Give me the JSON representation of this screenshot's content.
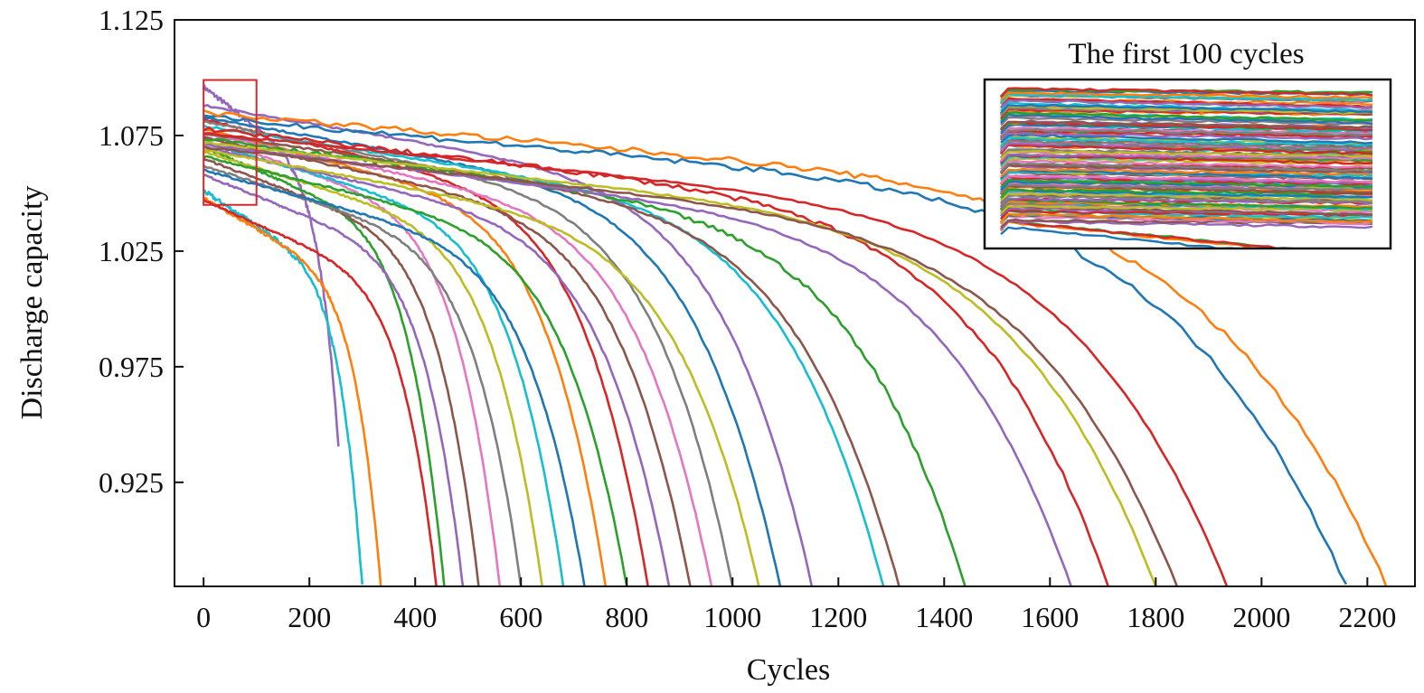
{
  "chart_data": {
    "type": "line",
    "title": "",
    "xlabel": "Cycles",
    "ylabel": "Discharge capacity",
    "xlim": [
      -55,
      2290
    ],
    "ylim": [
      0.88,
      1.125
    ],
    "xticks": [
      0,
      200,
      400,
      600,
      800,
      1000,
      1200,
      1400,
      1600,
      1800,
      2000,
      2200
    ],
    "xtick_labels": [
      "0",
      "200",
      "400",
      "600",
      "800",
      "1000",
      "1200",
      "1400",
      "1600",
      "1800",
      "2000",
      "2200"
    ],
    "yticks": [
      0.925,
      0.975,
      1.025,
      1.075,
      1.125
    ],
    "ytick_labels": [
      "0.925",
      "0.975",
      "1.025",
      "1.075",
      "1.125"
    ],
    "grid": false,
    "legend": "none",
    "highlight_box": {
      "x": [
        0,
        100
      ],
      "y": [
        1.045,
        1.099
      ],
      "color": "#d62728"
    },
    "inset": {
      "title": "The first 100 cycles",
      "x_range": [
        0,
        100
      ],
      "y_range": [
        1.035,
        1.1
      ]
    },
    "colors": [
      "#1f77b4",
      "#ff7f0e",
      "#2ca02c",
      "#d62728",
      "#9467bd",
      "#8c564b",
      "#e377c2",
      "#7f7f7f",
      "#bcbd22",
      "#17becf"
    ],
    "n_cells": 124,
    "series": [
      {
        "start": 1.096,
        "end_cycle": 255,
        "end_cap": 0.94,
        "color": "#9467bd",
        "noise": 0.001
      },
      {
        "start": 1.051,
        "end_cycle": 300,
        "end_cap": 0.88,
        "color": "#17becf",
        "noise": 0.001
      },
      {
        "start": 1.048,
        "end_cycle": 335,
        "end_cap": 0.88,
        "color": "#ff7f0e",
        "noise": 0.0006
      },
      {
        "start": 1.047,
        "end_cycle": 440,
        "end_cap": 0.88,
        "color": "#d62728",
        "noise": 0.0004
      },
      {
        "start": 1.07,
        "end_cycle": 455,
        "end_cap": 0.88,
        "color": "#2ca02c",
        "noise": 0.0004
      },
      {
        "start": 1.058,
        "end_cycle": 490,
        "end_cap": 0.88,
        "color": "#9467bd",
        "noise": 0.0004
      },
      {
        "start": 1.065,
        "end_cycle": 520,
        "end_cap": 0.88,
        "color": "#8c564b",
        "noise": 0.0004
      },
      {
        "start": 1.075,
        "end_cycle": 560,
        "end_cap": 0.88,
        "color": "#e377c2",
        "noise": 0.0004
      },
      {
        "start": 1.062,
        "end_cycle": 600,
        "end_cap": 0.88,
        "color": "#7f7f7f",
        "noise": 0.0004
      },
      {
        "start": 1.068,
        "end_cycle": 640,
        "end_cap": 0.88,
        "color": "#bcbd22",
        "noise": 0.0004
      },
      {
        "start": 1.072,
        "end_cycle": 680,
        "end_cap": 0.88,
        "color": "#17becf",
        "noise": 0.0004
      },
      {
        "start": 1.06,
        "end_cycle": 720,
        "end_cap": 0.88,
        "color": "#1f77b4",
        "noise": 0.0004
      },
      {
        "start": 1.078,
        "end_cycle": 760,
        "end_cap": 0.88,
        "color": "#ff7f0e",
        "noise": 0.0004
      },
      {
        "start": 1.066,
        "end_cycle": 800,
        "end_cap": 0.88,
        "color": "#2ca02c",
        "noise": 0.0004
      },
      {
        "start": 1.082,
        "end_cycle": 840,
        "end_cap": 0.88,
        "color": "#d62728",
        "noise": 0.0004
      },
      {
        "start": 1.07,
        "end_cycle": 880,
        "end_cap": 0.88,
        "color": "#9467bd",
        "noise": 0.0004
      },
      {
        "start": 1.074,
        "end_cycle": 920,
        "end_cap": 0.88,
        "color": "#8c564b",
        "noise": 0.0004
      },
      {
        "start": 1.076,
        "end_cycle": 960,
        "end_cap": 0.88,
        "color": "#e377c2",
        "noise": 0.0004
      },
      {
        "start": 1.081,
        "end_cycle": 1000,
        "end_cap": 0.88,
        "color": "#7f7f7f",
        "noise": 0.0004
      },
      {
        "start": 1.069,
        "end_cycle": 1050,
        "end_cap": 0.88,
        "color": "#bcbd22",
        "noise": 0.0004
      },
      {
        "start": 1.083,
        "end_cycle": 1090,
        "end_cap": 0.88,
        "color": "#1f77b4",
        "noise": 0.0004
      },
      {
        "start": 1.088,
        "end_cycle": 1150,
        "end_cap": 0.88,
        "color": "#9467bd",
        "noise": 0.0004
      },
      {
        "start": 1.079,
        "end_cycle": 1285,
        "end_cap": 0.88,
        "color": "#17becf",
        "noise": 0.0004
      },
      {
        "start": 1.076,
        "end_cycle": 1315,
        "end_cap": 0.88,
        "color": "#8c564b",
        "noise": 0.0004
      },
      {
        "start": 1.074,
        "end_cycle": 1440,
        "end_cap": 0.88,
        "color": "#2ca02c",
        "noise": 0.001
      },
      {
        "start": 1.071,
        "end_cycle": 1640,
        "end_cap": 0.88,
        "color": "#9467bd",
        "noise": 0.0004
      },
      {
        "start": 1.078,
        "end_cycle": 1710,
        "end_cap": 0.88,
        "color": "#d62728",
        "noise": 0.001
      },
      {
        "start": 1.072,
        "end_cycle": 1800,
        "end_cap": 0.88,
        "color": "#bcbd22",
        "noise": 0.0004
      },
      {
        "start": 1.07,
        "end_cycle": 1840,
        "end_cap": 0.88,
        "color": "#8c564b",
        "noise": 0.0004
      },
      {
        "start": 1.076,
        "end_cycle": 1935,
        "end_cap": 0.88,
        "color": "#d62728",
        "noise": 0.0004
      },
      {
        "start": 1.083,
        "end_cycle": 2160,
        "end_cap": 0.88,
        "color": "#1f77b4",
        "noise": 0.0012
      },
      {
        "start": 1.085,
        "end_cycle": 2237,
        "end_cap": 0.88,
        "color": "#ff7f0e",
        "noise": 0.0012
      }
    ]
  }
}
